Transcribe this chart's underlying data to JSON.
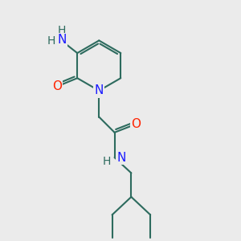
{
  "bg_color": "#ebebeb",
  "bond_color": "#2d6b5e",
  "bond_width": 1.5,
  "atom_colors": {
    "N": "#1a1aff",
    "O": "#ff2200",
    "H": "#2d6b5e"
  },
  "xlim": [
    0,
    10
  ],
  "ylim": [
    0,
    10
  ]
}
